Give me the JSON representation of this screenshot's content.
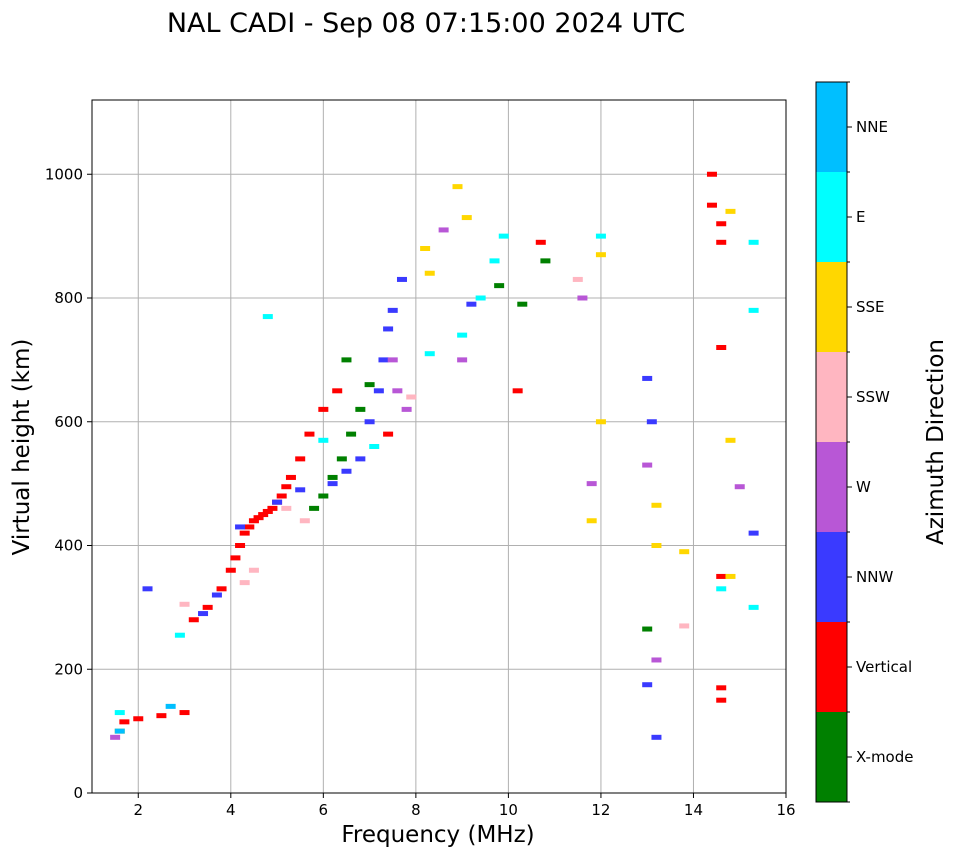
{
  "chart_data": {
    "type": "scatter",
    "title": "NAL CADI - Sep 08 07:15:00 2024 UTC",
    "xlabel": "Frequency (MHz)",
    "ylabel": "Virtual height (km)",
    "xlim": [
      1,
      16
    ],
    "ylim": [
      0,
      1120
    ],
    "xticks": [
      "2",
      "4",
      "6",
      "8",
      "10",
      "12",
      "14",
      "16"
    ],
    "yticks": [
      "0",
      "200",
      "400",
      "600",
      "800",
      "1000"
    ],
    "grid": true,
    "colorbar": {
      "label": "Azimuth Direction",
      "categories": [
        {
          "name": "X-mode",
          "color": "#008000"
        },
        {
          "name": "Vertical",
          "color": "#ff0000"
        },
        {
          "name": "NNW",
          "color": "#3a3aff"
        },
        {
          "name": "W",
          "color": "#b857d6"
        },
        {
          "name": "SSW",
          "color": "#ffb6c1"
        },
        {
          "name": "SSE",
          "color": "#ffd700"
        },
        {
          "name": "E",
          "color": "#00ffff"
        },
        {
          "name": "NNE",
          "color": "#00bfff"
        }
      ]
    },
    "series": [
      {
        "name": "Vertical",
        "points": [
          [
            3.2,
            280
          ],
          [
            3.5,
            300
          ],
          [
            3.8,
            330
          ],
          [
            4.0,
            360
          ],
          [
            4.1,
            380
          ],
          [
            4.2,
            400
          ],
          [
            4.3,
            420
          ],
          [
            4.4,
            430
          ],
          [
            4.5,
            440
          ],
          [
            4.6,
            445
          ],
          [
            4.7,
            450
          ],
          [
            4.8,
            455
          ],
          [
            4.9,
            460
          ],
          [
            5.0,
            470
          ],
          [
            5.1,
            480
          ],
          [
            5.2,
            495
          ],
          [
            5.3,
            510
          ],
          [
            5.5,
            540
          ],
          [
            5.7,
            580
          ],
          [
            6.0,
            620
          ],
          [
            6.3,
            650
          ],
          [
            7.4,
            580
          ],
          [
            1.7,
            115
          ],
          [
            2.0,
            120
          ],
          [
            2.5,
            125
          ],
          [
            3.0,
            130
          ],
          [
            14.6,
            150
          ],
          [
            14.6,
            170
          ],
          [
            14.6,
            350
          ],
          [
            14.6,
            720
          ],
          [
            14.6,
            890
          ],
          [
            14.4,
            1000
          ],
          [
            14.4,
            950
          ],
          [
            14.6,
            920
          ],
          [
            10.2,
            650
          ],
          [
            10.7,
            890
          ]
        ]
      },
      {
        "name": "NNW",
        "points": [
          [
            3.4,
            290
          ],
          [
            3.7,
            320
          ],
          [
            4.2,
            430
          ],
          [
            5.0,
            470
          ],
          [
            5.5,
            490
          ],
          [
            6.2,
            500
          ],
          [
            6.5,
            520
          ],
          [
            6.8,
            540
          ],
          [
            7.0,
            600
          ],
          [
            7.2,
            650
          ],
          [
            7.3,
            700
          ],
          [
            7.4,
            750
          ],
          [
            7.5,
            780
          ],
          [
            7.7,
            830
          ],
          [
            9.2,
            790
          ],
          [
            13.0,
            670
          ],
          [
            13.1,
            600
          ],
          [
            13.2,
            90
          ],
          [
            13.0,
            175
          ],
          [
            15.3,
            420
          ],
          [
            2.2,
            330
          ]
        ]
      },
      {
        "name": "X-mode",
        "points": [
          [
            5.8,
            460
          ],
          [
            6.0,
            480
          ],
          [
            6.2,
            510
          ],
          [
            6.4,
            540
          ],
          [
            6.6,
            580
          ],
          [
            6.8,
            620
          ],
          [
            7.0,
            660
          ],
          [
            6.5,
            700
          ],
          [
            9.8,
            820
          ],
          [
            10.3,
            790
          ],
          [
            10.8,
            860
          ],
          [
            13.0,
            265
          ]
        ]
      },
      {
        "name": "W",
        "points": [
          [
            7.5,
            700
          ],
          [
            7.6,
            650
          ],
          [
            7.8,
            620
          ],
          [
            8.6,
            910
          ],
          [
            9.0,
            700
          ],
          [
            11.6,
            800
          ],
          [
            11.8,
            500
          ],
          [
            13.0,
            530
          ],
          [
            13.2,
            215
          ],
          [
            15.0,
            495
          ],
          [
            1.5,
            90
          ]
        ]
      },
      {
        "name": "SSW",
        "points": [
          [
            4.3,
            340
          ],
          [
            4.5,
            360
          ],
          [
            5.2,
            460
          ],
          [
            5.6,
            440
          ],
          [
            7.9,
            640
          ],
          [
            11.5,
            830
          ],
          [
            13.8,
            270
          ],
          [
            3.0,
            305
          ]
        ]
      },
      {
        "name": "SSE",
        "points": [
          [
            8.2,
            880
          ],
          [
            8.3,
            840
          ],
          [
            8.9,
            980
          ],
          [
            9.1,
            930
          ],
          [
            12.0,
            600
          ],
          [
            11.8,
            440
          ],
          [
            13.2,
            465
          ],
          [
            13.2,
            400
          ],
          [
            13.8,
            390
          ],
          [
            14.8,
            570
          ],
          [
            14.8,
            940
          ],
          [
            14.8,
            350
          ],
          [
            1.6,
            100
          ],
          [
            12.0,
            870
          ]
        ]
      },
      {
        "name": "E",
        "points": [
          [
            4.8,
            770
          ],
          [
            6.0,
            570
          ],
          [
            7.1,
            560
          ],
          [
            8.3,
            710
          ],
          [
            9.0,
            740
          ],
          [
            9.4,
            800
          ],
          [
            9.7,
            860
          ],
          [
            9.9,
            900
          ],
          [
            12.0,
            900
          ],
          [
            14.6,
            330
          ],
          [
            15.3,
            890
          ],
          [
            15.3,
            780
          ],
          [
            15.3,
            300
          ],
          [
            1.6,
            130
          ],
          [
            2.9,
            255
          ]
        ]
      },
      {
        "name": "NNE",
        "points": [
          [
            1.6,
            100
          ],
          [
            2.7,
            140
          ]
        ]
      }
    ]
  }
}
